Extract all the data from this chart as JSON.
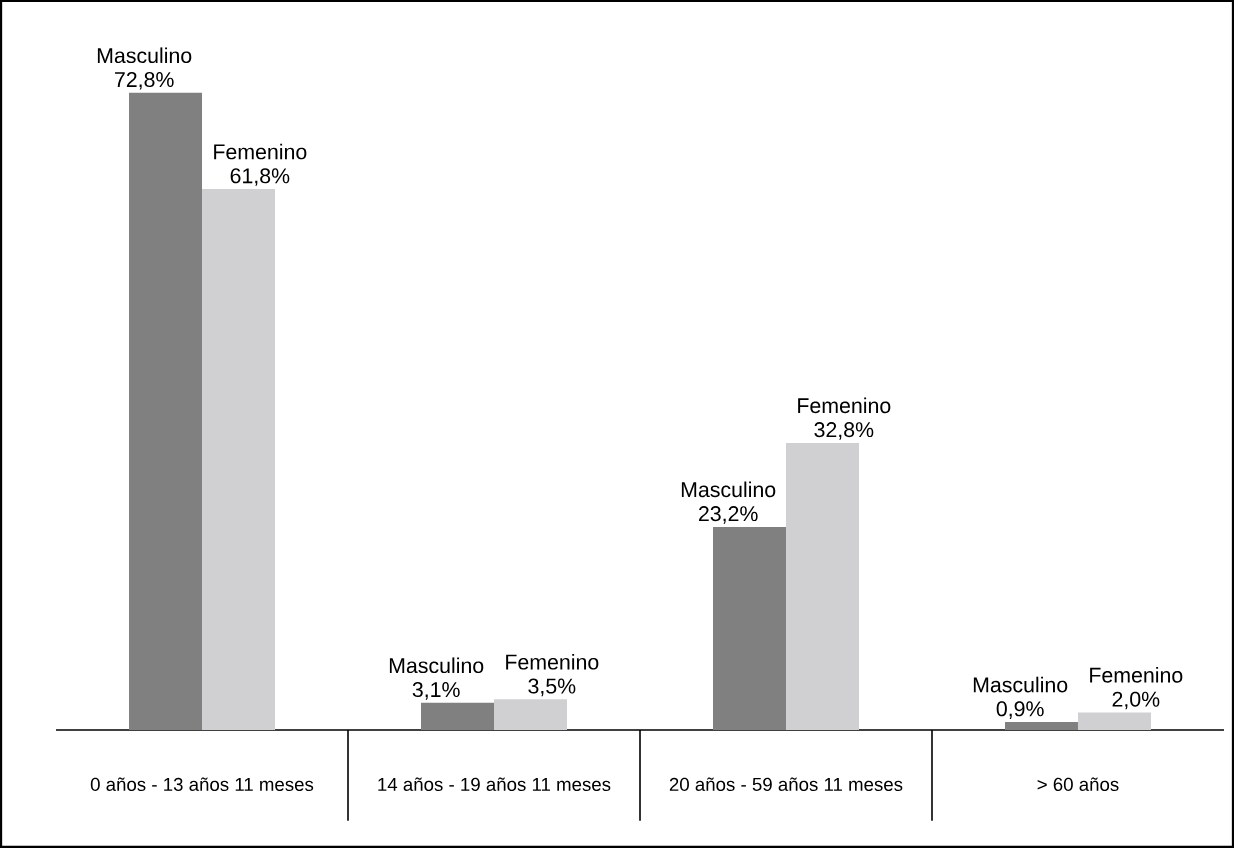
{
  "chart_data": {
    "type": "bar",
    "categories": [
      "0 años - 13 años 11 meses",
      "14 años - 19 años 11 meses",
      "20 años - 59 años 11 meses",
      "> 60 años"
    ],
    "series": [
      {
        "name": "Masculino",
        "color": "#808080",
        "values": [
          72.8,
          3.1,
          23.2,
          0.9
        ],
        "value_labels": [
          "72,8%",
          "3,1%",
          "23,2%",
          "0,9%"
        ]
      },
      {
        "name": "Femenino",
        "color": "#d0d0d2",
        "values": [
          61.8,
          3.5,
          32.8,
          2.0
        ],
        "value_labels": [
          "61,8%",
          "3,5%",
          "32,8%",
          "2,0%"
        ]
      }
    ]
  }
}
